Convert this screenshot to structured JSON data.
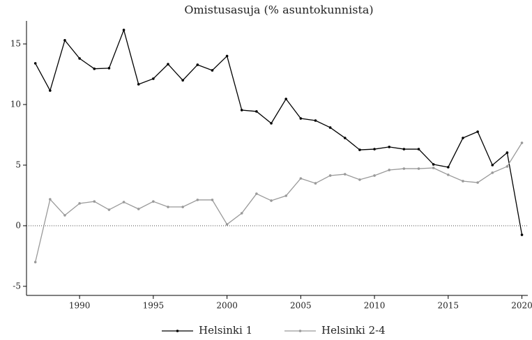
{
  "chart_data": {
    "type": "line",
    "title": "Omistusasuja (% asuntokunnista)",
    "x": [
      1987,
      1988,
      1989,
      1990,
      1991,
      1992,
      1993,
      1994,
      1995,
      1996,
      1997,
      1998,
      1999,
      2000,
      2001,
      2002,
      2003,
      2004,
      2005,
      2006,
      2007,
      2008,
      2009,
      2010,
      2011,
      2012,
      2013,
      2014,
      2015,
      2016,
      2017,
      2018,
      2019,
      2020
    ],
    "series": [
      {
        "name": "Helsinki 1",
        "color": "#000000",
        "values": [
          13.4,
          11.15,
          15.3,
          13.8,
          12.95,
          13.0,
          16.15,
          11.67,
          12.13,
          13.33,
          12.0,
          13.28,
          12.82,
          14.0,
          9.54,
          9.43,
          8.45,
          10.46,
          8.85,
          8.68,
          8.1,
          7.24,
          6.26,
          6.32,
          6.5,
          6.32,
          6.32,
          5.06,
          4.83,
          7.24,
          7.76,
          5.0,
          6.03,
          -0.75
        ]
      },
      {
        "name": "Helsinki 2-4",
        "color": "#999999",
        "values": [
          -3.0,
          2.18,
          0.86,
          1.84,
          2.0,
          1.32,
          1.95,
          1.38,
          2.0,
          1.55,
          1.55,
          2.13,
          2.13,
          0.11,
          1.03,
          2.64,
          2.07,
          2.47,
          3.9,
          3.5,
          4.14,
          4.25,
          3.8,
          4.14,
          4.6,
          4.71,
          4.71,
          4.77,
          4.2,
          3.68,
          3.56,
          4.37,
          4.89,
          6.84
        ]
      }
    ],
    "xlim": [
      1986.4,
      2020.4
    ],
    "xticks": [
      1990,
      1995,
      2000,
      2005,
      2010,
      2015,
      2020
    ],
    "ylim": [
      -5.75,
      16.9
    ],
    "yticks": [
      -5,
      0,
      5,
      10,
      15
    ],
    "reference_line": 0,
    "legend": "bottom"
  }
}
